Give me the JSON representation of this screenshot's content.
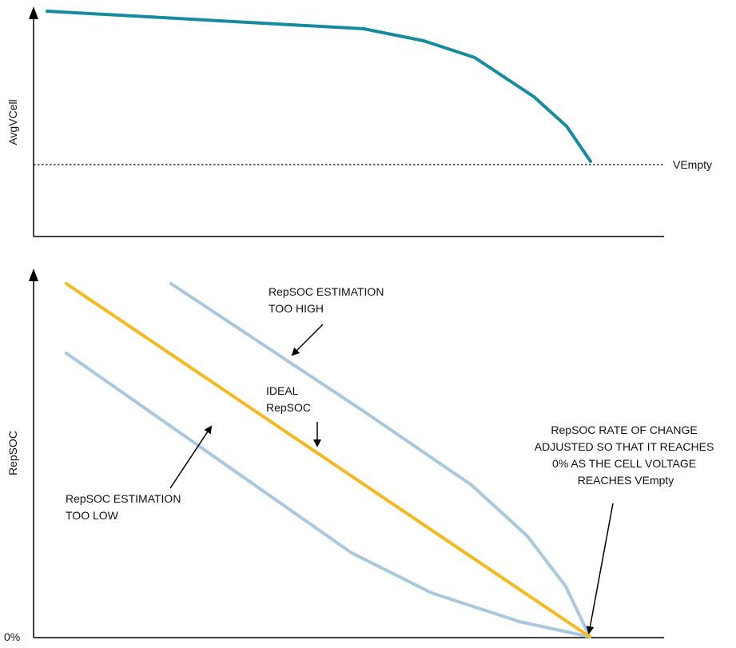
{
  "colors": {
    "voltage_curve": "#168ba0",
    "ideal_line": "#f6b81e",
    "estimate_lines": "#a9c8de",
    "axis": "#000000",
    "text": "#111111"
  },
  "top_plot": {
    "y_label": "AvgVCell",
    "threshold_label": "VEmpty"
  },
  "bottom_plot": {
    "y_label": "RepSOC",
    "zero_label": "0%",
    "annotations": {
      "too_high": [
        "RepSOC ESTIMATION",
        "TOO HIGH"
      ],
      "ideal": [
        "IDEAL",
        "RepSOC"
      ],
      "too_low": [
        "RepSOC ESTIMATION",
        "TOO LOW"
      ],
      "adjusted": [
        "RepSOC RATE OF CHANGE",
        "ADJUSTED SO THAT IT REACHES",
        "0% AS THE CELL VOLTAGE",
        "REACHES VEmpty"
      ]
    }
  }
}
